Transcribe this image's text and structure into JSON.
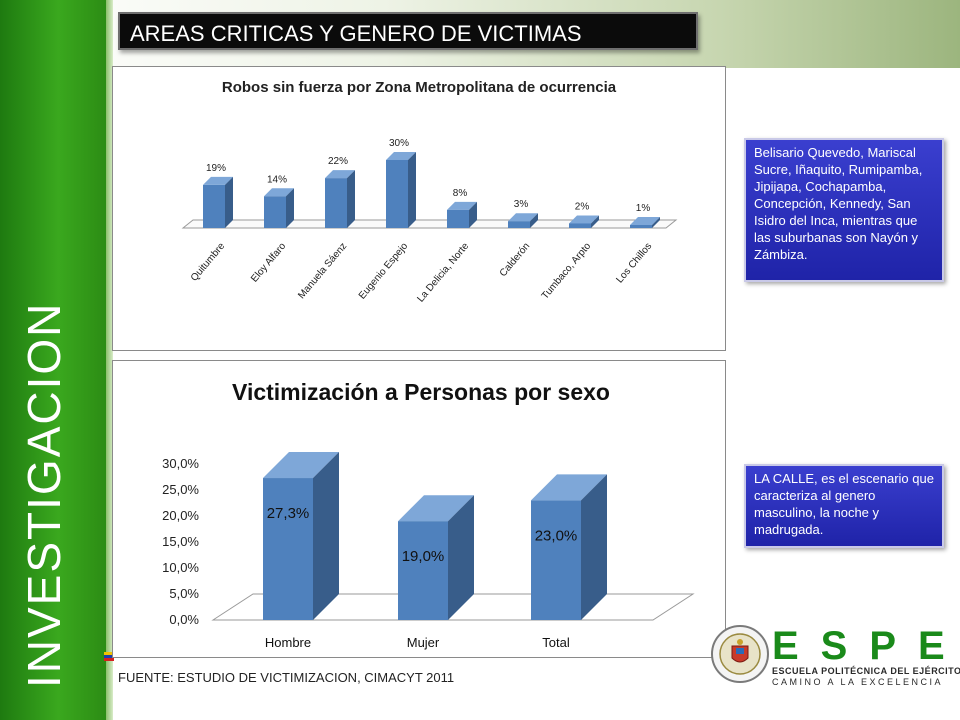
{
  "side_label": "INVESTIGACION",
  "title": "AREAS CRITICAS Y GENERO DE VICTIMAS",
  "footer": "FUENTE: ESTUDIO DE VICTIMIZACION, CIMACYT 2011",
  "callouts": {
    "areas": "Belisario Quevedo, Mariscal Sucre, Iñaquito, Rumipamba, Jipijapa, Cochapamba, Concepción, Kennedy, San Isidro del Inca, mientras que las suburbanas son Nayón y Zámbiza.",
    "genero": "LA CALLE, es el escenario que caracteriza al genero masculino, la noche y madrugada."
  },
  "logo": {
    "letters": "ESPE",
    "name": "ESCUELA POLITÉCNICA DEL EJÉRCITO",
    "motto": "CAMINO A LA EXCELENCIA"
  },
  "colors": {
    "green": "#2c8c14",
    "bar_front": "#4f81bd",
    "bar_side": "#385d8a",
    "callout_blue": "#2a2fbf"
  },
  "chart_data": [
    {
      "type": "bar",
      "title": "Robos sin fuerza por Zona Metropolitana de ocurrencia",
      "categories": [
        "Quitumbre",
        "Eloy Alfaro",
        "Manuela Sáenz",
        "Eugenio Espejo",
        "La Delicia, Norte",
        "Calderón",
        "Tumbaco, Arpto",
        "Los Chillos"
      ],
      "values": [
        19,
        14,
        22,
        30,
        8,
        3,
        2,
        1
      ],
      "data_labels": [
        "19%",
        "14%",
        "22%",
        "30%",
        "8%",
        "3%",
        "2%",
        "1%"
      ],
      "style": "3d"
    },
    {
      "type": "bar",
      "title": "Victimización a Personas por sexo",
      "categories": [
        "Hombre",
        "Mujer",
        "Total"
      ],
      "values": [
        27.3,
        19.0,
        23.0
      ],
      "data_labels": [
        "27,3%",
        "19,0%",
        "23,0%"
      ],
      "y_ticks": [
        "0,0%",
        "5,0%",
        "10,0%",
        "15,0%",
        "20,0%",
        "25,0%",
        "30,0%"
      ],
      "ylim": [
        0,
        30
      ],
      "style": "3d"
    }
  ]
}
